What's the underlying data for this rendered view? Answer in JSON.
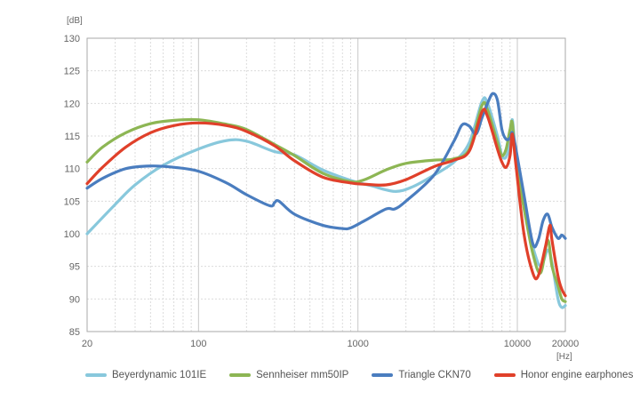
{
  "chart_data": {
    "type": "line",
    "title": "",
    "xlabel": "[Hz]",
    "ylabel": "[dB]",
    "x_scale": "log",
    "xlim": [
      20,
      20000
    ],
    "ylim": [
      85,
      130
    ],
    "x_ticks": [
      "20",
      "100",
      "1000",
      "10000",
      "20000"
    ],
    "y_ticks": [
      "85",
      "90",
      "95",
      "100",
      "105",
      "110",
      "115",
      "120",
      "125",
      "130"
    ],
    "grid": true,
    "legend_position": "bottom",
    "series": [
      {
        "name": "Beyerdynamic 101IE",
        "color": "#88c8dc",
        "points": [
          [
            20,
            100
          ],
          [
            30,
            104.5
          ],
          [
            40,
            107.5
          ],
          [
            60,
            110.5
          ],
          [
            100,
            113
          ],
          [
            150,
            114.3
          ],
          [
            200,
            114.2
          ],
          [
            300,
            112.6
          ],
          [
            400,
            112.1
          ],
          [
            600,
            109.8
          ],
          [
            900,
            108.2
          ],
          [
            1200,
            107.4
          ],
          [
            1700,
            106.5
          ],
          [
            2200,
            107.2
          ],
          [
            3000,
            109
          ],
          [
            4000,
            111
          ],
          [
            5000,
            114
          ],
          [
            6000,
            120.3
          ],
          [
            6500,
            120
          ],
          [
            7500,
            115
          ],
          [
            8000,
            112
          ],
          [
            8500,
            111.8
          ],
          [
            9000,
            114
          ],
          [
            9300,
            117.5
          ],
          [
            9800,
            112
          ],
          [
            11000,
            104
          ],
          [
            12500,
            98
          ],
          [
            14000,
            95
          ],
          [
            15500,
            97.5
          ],
          [
            16500,
            95.5
          ],
          [
            18000,
            90
          ],
          [
            19000,
            88.7
          ],
          [
            20000,
            89
          ]
        ]
      },
      {
        "name": "Sennheiser mm50IP",
        "color": "#8db654",
        "points": [
          [
            20,
            111
          ],
          [
            25,
            113.3
          ],
          [
            35,
            115.5
          ],
          [
            50,
            116.9
          ],
          [
            70,
            117.4
          ],
          [
            100,
            117.5
          ],
          [
            150,
            116.8
          ],
          [
            200,
            116
          ],
          [
            300,
            113.7
          ],
          [
            400,
            112
          ],
          [
            600,
            109.3
          ],
          [
            900,
            108
          ],
          [
            1100,
            108.3
          ],
          [
            1500,
            109.8
          ],
          [
            2000,
            110.8
          ],
          [
            3000,
            111.3
          ],
          [
            4000,
            111.5
          ],
          [
            5000,
            113
          ],
          [
            6000,
            119.7
          ],
          [
            6500,
            119
          ],
          [
            7500,
            114
          ],
          [
            8000,
            112
          ],
          [
            8500,
            113
          ],
          [
            9000,
            116
          ],
          [
            9300,
            117
          ],
          [
            9800,
            111
          ],
          [
            11000,
            104
          ],
          [
            12500,
            97
          ],
          [
            14000,
            94
          ],
          [
            15500,
            99
          ],
          [
            16500,
            95
          ],
          [
            18000,
            92
          ],
          [
            19000,
            90
          ],
          [
            20000,
            89.6
          ]
        ]
      },
      {
        "name": "Triangle CKN70",
        "color": "#4a7dbf",
        "points": [
          [
            20,
            107
          ],
          [
            25,
            108.5
          ],
          [
            35,
            110
          ],
          [
            50,
            110.4
          ],
          [
            70,
            110.2
          ],
          [
            100,
            109.6
          ],
          [
            150,
            107.8
          ],
          [
            200,
            106
          ],
          [
            280,
            104.3
          ],
          [
            300,
            104.8
          ],
          [
            320,
            105
          ],
          [
            400,
            103
          ],
          [
            600,
            101.3
          ],
          [
            800,
            100.8
          ],
          [
            900,
            100.9
          ],
          [
            1100,
            102
          ],
          [
            1500,
            103.8
          ],
          [
            1700,
            103.8
          ],
          [
            2000,
            105
          ],
          [
            3000,
            109
          ],
          [
            4000,
            114.2
          ],
          [
            4500,
            116.7
          ],
          [
            5000,
            116.5
          ],
          [
            5500,
            115.3
          ],
          [
            6000,
            117.8
          ],
          [
            6500,
            120
          ],
          [
            7000,
            121.5
          ],
          [
            7500,
            120.5
          ],
          [
            8000,
            116
          ],
          [
            8500,
            114.5
          ],
          [
            9000,
            114.7
          ],
          [
            9300,
            115.5
          ],
          [
            9800,
            113
          ],
          [
            11000,
            106
          ],
          [
            12500,
            98.5
          ],
          [
            13500,
            99
          ],
          [
            14500,
            102
          ],
          [
            15500,
            103
          ],
          [
            16500,
            101
          ],
          [
            18000,
            99.3
          ],
          [
            19000,
            99.8
          ],
          [
            20000,
            99.3
          ]
        ]
      },
      {
        "name": "Honor engine earphones",
        "color": "#e0402a",
        "points": [
          [
            20,
            107.7
          ],
          [
            25,
            110.2
          ],
          [
            35,
            113.3
          ],
          [
            50,
            115.5
          ],
          [
            70,
            116.6
          ],
          [
            100,
            117
          ],
          [
            150,
            116.6
          ],
          [
            200,
            115.7
          ],
          [
            300,
            113.5
          ],
          [
            400,
            111.2
          ],
          [
            600,
            108.7
          ],
          [
            900,
            107.8
          ],
          [
            1100,
            107.6
          ],
          [
            1500,
            107.5
          ],
          [
            2000,
            108.3
          ],
          [
            3000,
            110.3
          ],
          [
            4000,
            111.3
          ],
          [
            5000,
            112.7
          ],
          [
            6000,
            118.7
          ],
          [
            6500,
            118
          ],
          [
            7500,
            113
          ],
          [
            8000,
            111
          ],
          [
            8500,
            110.2
          ],
          [
            9000,
            112
          ],
          [
            9300,
            115.3
          ],
          [
            9800,
            110.5
          ],
          [
            11000,
            100
          ],
          [
            12500,
            94
          ],
          [
            13500,
            93.5
          ],
          [
            15000,
            98
          ],
          [
            16000,
            101.3
          ],
          [
            16500,
            99
          ],
          [
            18000,
            93.5
          ],
          [
            19000,
            91.5
          ],
          [
            20000,
            90.5
          ]
        ]
      }
    ]
  }
}
